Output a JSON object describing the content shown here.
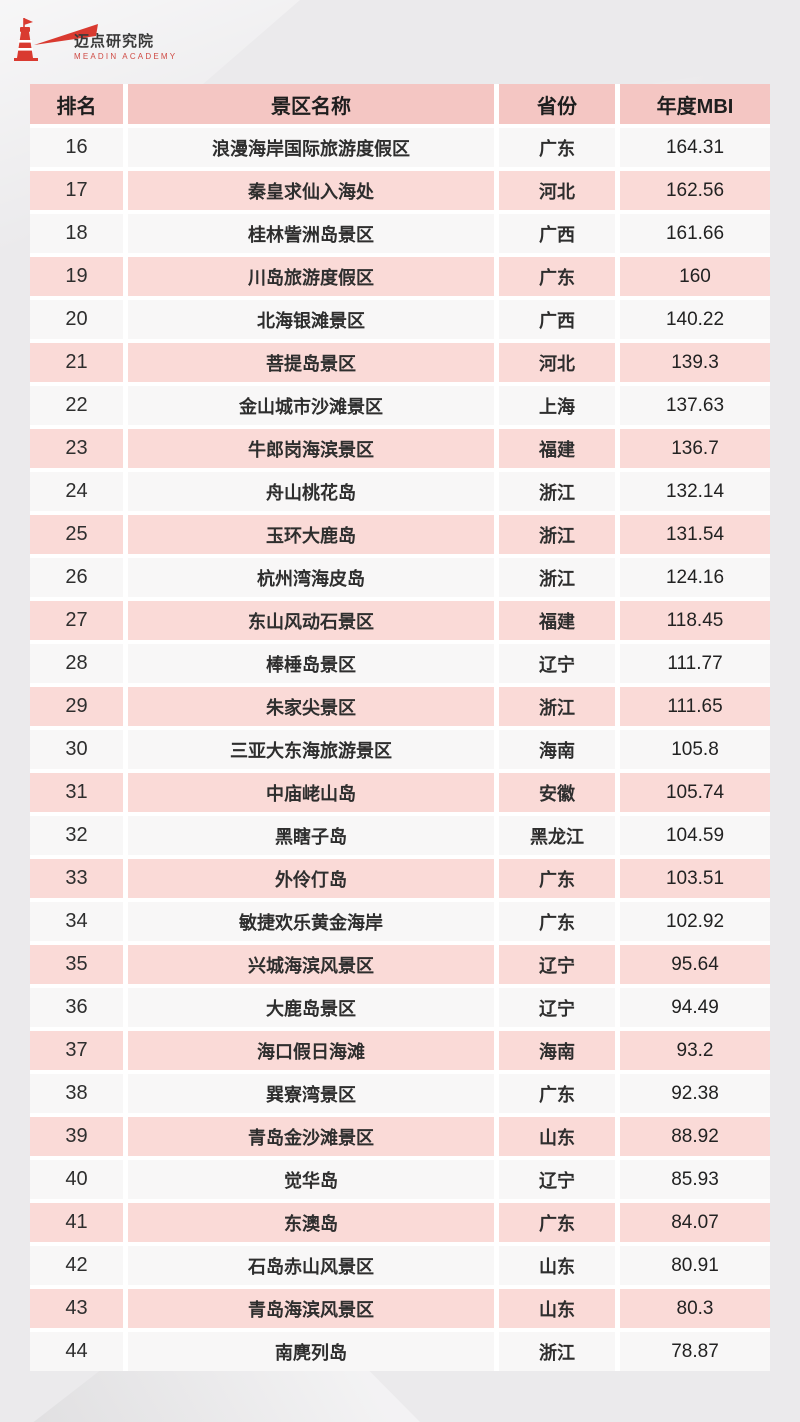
{
  "logo": {
    "title": "迈点研究院",
    "subtitle": "MEADIN ACADEMY",
    "icon": "lighthouse-beam-icon",
    "brand_color": "#d93a30"
  },
  "table": {
    "columns": [
      "排名",
      "景区名称",
      "省份",
      "年度MBI"
    ],
    "rows": [
      {
        "rank": "16",
        "name": "浪漫海岸国际旅游度假区",
        "province": "广东",
        "mbi": "164.31"
      },
      {
        "rank": "17",
        "name": "秦皇求仙入海处",
        "province": "河北",
        "mbi": "162.56"
      },
      {
        "rank": "18",
        "name": "桂林訾洲岛景区",
        "province": "广西",
        "mbi": "161.66"
      },
      {
        "rank": "19",
        "name": "川岛旅游度假区",
        "province": "广东",
        "mbi": "160"
      },
      {
        "rank": "20",
        "name": "北海银滩景区",
        "province": "广西",
        "mbi": "140.22"
      },
      {
        "rank": "21",
        "name": "菩提岛景区",
        "province": "河北",
        "mbi": "139.3"
      },
      {
        "rank": "22",
        "name": "金山城市沙滩景区",
        "province": "上海",
        "mbi": "137.63"
      },
      {
        "rank": "23",
        "name": "牛郎岗海滨景区",
        "province": "福建",
        "mbi": "136.7"
      },
      {
        "rank": "24",
        "name": "舟山桃花岛",
        "province": "浙江",
        "mbi": "132.14"
      },
      {
        "rank": "25",
        "name": "玉环大鹿岛",
        "province": "浙江",
        "mbi": "131.54"
      },
      {
        "rank": "26",
        "name": "杭州湾海皮岛",
        "province": "浙江",
        "mbi": "124.16"
      },
      {
        "rank": "27",
        "name": "东山风动石景区",
        "province": "福建",
        "mbi": "118.45"
      },
      {
        "rank": "28",
        "name": "棒棰岛景区",
        "province": "辽宁",
        "mbi": "111.77"
      },
      {
        "rank": "29",
        "name": "朱家尖景区",
        "province": "浙江",
        "mbi": "111.65"
      },
      {
        "rank": "30",
        "name": "三亚大东海旅游景区",
        "province": "海南",
        "mbi": "105.8"
      },
      {
        "rank": "31",
        "name": "中庙峔山岛",
        "province": "安徽",
        "mbi": "105.74"
      },
      {
        "rank": "32",
        "name": "黑瞎子岛",
        "province": "黑龙江",
        "mbi": "104.59"
      },
      {
        "rank": "33",
        "name": "外伶仃岛",
        "province": "广东",
        "mbi": "103.51"
      },
      {
        "rank": "34",
        "name": "敏捷欢乐黄金海岸",
        "province": "广东",
        "mbi": "102.92"
      },
      {
        "rank": "35",
        "name": "兴城海滨风景区",
        "province": "辽宁",
        "mbi": "95.64"
      },
      {
        "rank": "36",
        "name": "大鹿岛景区",
        "province": "辽宁",
        "mbi": "94.49"
      },
      {
        "rank": "37",
        "name": "海口假日海滩",
        "province": "海南",
        "mbi": "93.2"
      },
      {
        "rank": "38",
        "name": "巽寮湾景区",
        "province": "广东",
        "mbi": "92.38"
      },
      {
        "rank": "39",
        "name": "青岛金沙滩景区",
        "province": "山东",
        "mbi": "88.92"
      },
      {
        "rank": "40",
        "name": "觉华岛",
        "province": "辽宁",
        "mbi": "85.93"
      },
      {
        "rank": "41",
        "name": "东澳岛",
        "province": "广东",
        "mbi": "84.07"
      },
      {
        "rank": "42",
        "name": "石岛赤山风景区",
        "province": "山东",
        "mbi": "80.91"
      },
      {
        "rank": "43",
        "name": "青岛海滨风景区",
        "province": "山东",
        "mbi": "80.3"
      },
      {
        "rank": "44",
        "name": "南麂列岛",
        "province": "浙江",
        "mbi": "78.87"
      }
    ]
  },
  "colors": {
    "page_bg": "#ebeaec",
    "header_bg": "#f4c6c3",
    "row_pink": "#fadad7",
    "row_white": "#f8f7f7",
    "gap": "#ffffff",
    "text": "#2e2e2e",
    "brand_red": "#d93a30"
  },
  "chart_data": {
    "type": "table",
    "title": "",
    "columns": [
      "排名",
      "景区名称",
      "省份",
      "年度MBI"
    ],
    "rows": [
      [
        16,
        "浪漫海岸国际旅游度假区",
        "广东",
        164.31
      ],
      [
        17,
        "秦皇求仙入海处",
        "河北",
        162.56
      ],
      [
        18,
        "桂林訾洲岛景区",
        "广西",
        161.66
      ],
      [
        19,
        "川岛旅游度假区",
        "广东",
        160
      ],
      [
        20,
        "北海银滩景区",
        "广西",
        140.22
      ],
      [
        21,
        "菩提岛景区",
        "河北",
        139.3
      ],
      [
        22,
        "金山城市沙滩景区",
        "上海",
        137.63
      ],
      [
        23,
        "牛郎岗海滨景区",
        "福建",
        136.7
      ],
      [
        24,
        "舟山桃花岛",
        "浙江",
        132.14
      ],
      [
        25,
        "玉环大鹿岛",
        "浙江",
        131.54
      ],
      [
        26,
        "杭州湾海皮岛",
        "浙江",
        124.16
      ],
      [
        27,
        "东山风动石景区",
        "福建",
        118.45
      ],
      [
        28,
        "棒棰岛景区",
        "辽宁",
        111.77
      ],
      [
        29,
        "朱家尖景区",
        "浙江",
        111.65
      ],
      [
        30,
        "三亚大东海旅游景区",
        "海南",
        105.8
      ],
      [
        31,
        "中庙峔山岛",
        "安徽",
        105.74
      ],
      [
        32,
        "黑瞎子岛",
        "黑龙江",
        104.59
      ],
      [
        33,
        "外伶仃岛",
        "广东",
        103.51
      ],
      [
        34,
        "敏捷欢乐黄金海岸",
        "广东",
        102.92
      ],
      [
        35,
        "兴城海滨风景区",
        "辽宁",
        95.64
      ],
      [
        36,
        "大鹿岛景区",
        "辽宁",
        94.49
      ],
      [
        37,
        "海口假日海滩",
        "海南",
        93.2
      ],
      [
        38,
        "巽寮湾景区",
        "广东",
        92.38
      ],
      [
        39,
        "青岛金沙滩景区",
        "山东",
        88.92
      ],
      [
        40,
        "觉华岛",
        "辽宁",
        85.93
      ],
      [
        41,
        "东澳岛",
        "广东",
        84.07
      ],
      [
        42,
        "石岛赤山风景区",
        "山东",
        80.91
      ],
      [
        43,
        "青岛海滨风景区",
        "山东",
        80.3
      ],
      [
        44,
        "南麂列岛",
        "浙江",
        78.87
      ]
    ]
  }
}
